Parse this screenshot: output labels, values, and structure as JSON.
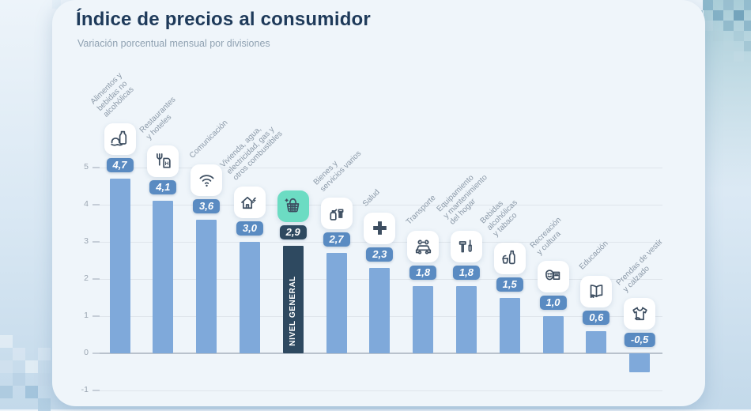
{
  "header": {
    "title": "Índice de precios al consumidor",
    "subtitle": "Variación porcentual mensual por divisiones"
  },
  "chart_data": {
    "type": "bar",
    "title": "Índice de precios al consumidor",
    "subtitle": "Variación porcentual mensual por divisiones",
    "ylabel": "",
    "ylim": [
      -1,
      5
    ],
    "yticks": [
      "5",
      "4",
      "3",
      "2",
      "1",
      "0",
      "-1"
    ],
    "grid": true,
    "categories": [
      "Alimentos y\nbebidas no\nalcohólicas",
      "Restaurantes\ny hoteles",
      "Comunicación",
      "Vivienda, agua,\nelectricidad, gas y\notros combustibles",
      "Nivel general",
      "Bienes y\nservicios varios",
      "Salud",
      "Transporte",
      "Equipamiento\ny mantenimiento\ndel hogar",
      "Bebidas\nalcohólicas\ny tabaco",
      "Recreación\ny cultura",
      "Educación",
      "Prendas de vestir\ny calzado"
    ],
    "values": [
      4.7,
      4.1,
      3.6,
      3.0,
      2.9,
      2.7,
      2.3,
      1.8,
      1.8,
      1.5,
      1.0,
      0.6,
      -0.5
    ],
    "value_labels": [
      "4,7",
      "4,1",
      "3,6",
      "3,0",
      "2,9",
      "2,7",
      "2,3",
      "1,8",
      "1,8",
      "1,5",
      "1,0",
      "0,6",
      "-0,5"
    ],
    "icons": [
      "food-icon",
      "restaurant-hotel-icon",
      "communication-icon",
      "housing-utilities-icon",
      "basket-icon",
      "goods-services-icon",
      "health-icon",
      "transport-icon",
      "home-equipment-icon",
      "alcohol-tobacco-icon",
      "recreation-icon",
      "education-icon",
      "clothing-icon"
    ],
    "highlight_index": 4,
    "highlight_label": "NIVEL GENERAL",
    "colors": {
      "bar": "#7fa9da",
      "bar_highlight": "#2e4960",
      "badge": "#5a8bc2",
      "badge_highlight": "#2e4960",
      "icon_tile": "#ffffff",
      "icon_tile_highlight": "#6cdcc3",
      "title_text": "#1e3a5a",
      "subtitle_text": "#90a2b2",
      "axis_text": "#9aa5b1",
      "gridline": "#dfe5eb"
    }
  }
}
